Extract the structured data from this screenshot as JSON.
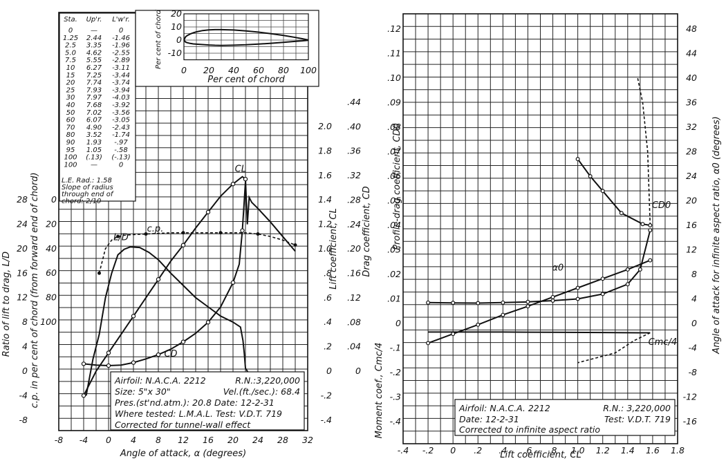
{
  "chart_data": [
    {
      "type": "line",
      "panel": "left",
      "xlabel": "Angle of attack, α (degrees)",
      "x_ticks": [
        "-8",
        "-4",
        "0",
        "4",
        "8",
        "12",
        "16",
        "20",
        "24",
        "28",
        "32"
      ],
      "xlim": [
        -8,
        32
      ],
      "axes": [
        {
          "label": "Ratio of lift to drag, L/D",
          "ticks": [
            "-8",
            "-4",
            "0",
            "4",
            "8",
            "12",
            "16",
            "20",
            "24",
            "28"
          ],
          "range": [
            -8,
            28
          ]
        },
        {
          "label": "c.p. in per cent of chord (from forward end of chord)",
          "ticks": [
            "100",
            "80",
            "60",
            "40",
            "20",
            "0"
          ],
          "range": [
            0,
            100
          ]
        },
        {
          "label": "Lift coefficient, CL",
          "ticks": [
            "-.4",
            "-.2",
            "0",
            ".2",
            ".4",
            ".6",
            ".8",
            "1.0",
            "1.2",
            "1.4",
            "1.6",
            "1.8",
            "2.0"
          ],
          "range": [
            -0.4,
            2.0
          ]
        },
        {
          "label": "Drag coefficient, CD",
          "ticks": [
            "0",
            ".04",
            ".08",
            ".12",
            ".16",
            ".20",
            ".24",
            ".28",
            ".32",
            ".36",
            ".40",
            ".44"
          ],
          "range": [
            0,
            0.44
          ]
        }
      ],
      "curve_labels": [
        "CL",
        "L/D",
        "c.p.",
        "CD"
      ],
      "series": [
        {
          "name": "CL",
          "x": [
            -4,
            -2,
            0,
            2,
            4,
            6,
            8,
            10,
            12,
            14,
            16,
            18,
            20,
            21.5,
            22
          ],
          "y": [
            -0.2,
            0.0,
            0.15,
            0.3,
            0.45,
            0.6,
            0.75,
            0.9,
            1.03,
            1.17,
            1.3,
            1.43,
            1.53,
            1.59,
            1.57
          ]
        },
        {
          "name": "CL-stalled",
          "x": [
            22,
            22.3,
            22.6,
            23,
            24,
            26,
            28,
            30
          ],
          "y": [
            1.57,
            1.2,
            1.42,
            1.38,
            1.33,
            1.22,
            1.1,
            0.98
          ]
        },
        {
          "name": "L/D",
          "x": [
            -3.6,
            -2.5,
            -1.5,
            -0.5,
            0.5,
            1.5,
            2.5,
            3.5,
            5,
            6.5,
            8,
            10,
            12,
            14,
            16,
            18,
            20,
            21.2,
            21.6,
            21.8,
            22,
            23,
            26,
            28,
            31
          ],
          "y": [
            -4,
            2,
            6,
            12,
            16,
            19,
            19.9,
            20.3,
            20.2,
            19.4,
            18.2,
            16,
            14,
            12,
            10.5,
            9,
            8,
            7.2,
            5,
            3,
            0.5,
            -1.2,
            -1.8,
            -2.3,
            -2.6
          ]
        },
        {
          "name": "c.p.",
          "x": [
            -1.5,
            -0.5,
            0.5,
            1.5,
            2.5,
            4,
            6,
            8,
            10,
            12,
            14,
            16,
            18,
            20,
            22,
            24,
            26,
            28,
            30
          ],
          "y": [
            60,
            40,
            33,
            30,
            29,
            28.5,
            28,
            27.5,
            27,
            27,
            27,
            27,
            27,
            27,
            27,
            28,
            30,
            33,
            37
          ]
        },
        {
          "name": "CD",
          "x": [
            -4,
            -2,
            0,
            2,
            4,
            6,
            8,
            10,
            12,
            14,
            16,
            18,
            20,
            21,
            21.5,
            22
          ],
          "y": [
            0.012,
            0.01,
            0.009,
            0.01,
            0.014,
            0.02,
            0.027,
            0.036,
            0.048,
            0.062,
            0.08,
            0.105,
            0.145,
            0.175,
            0.23,
            0.31
          ]
        }
      ],
      "inset": {
        "xlabel": "Per cent of chord",
        "ylabel": "Per cent of chord",
        "x_ticks": [
          "0",
          "20",
          "40",
          "60",
          "80",
          "100"
        ],
        "y_ticks": [
          "20",
          "10",
          "0",
          "-10"
        ],
        "upper": {
          "x": [
            0,
            1.25,
            2.5,
            5,
            7.5,
            10,
            15,
            20,
            25,
            30,
            40,
            50,
            60,
            70,
            80,
            90,
            95,
            100
          ],
          "y": [
            0,
            2.44,
            3.35,
            4.62,
            5.55,
            6.27,
            7.25,
            7.74,
            7.93,
            7.97,
            7.68,
            7.02,
            6.07,
            4.9,
            3.52,
            1.93,
            1.05,
            0.13
          ]
        },
        "lower": {
          "x": [
            0,
            1.25,
            2.5,
            5,
            7.5,
            10,
            15,
            20,
            25,
            30,
            40,
            50,
            60,
            70,
            80,
            90,
            95,
            100
          ],
          "y": [
            0,
            -1.46,
            -1.96,
            -2.55,
            -2.89,
            -3.11,
            -3.44,
            -3.74,
            -3.94,
            -4.03,
            -3.92,
            -3.56,
            -3.05,
            -2.43,
            -1.74,
            -0.97,
            -0.58,
            -0.13
          ]
        }
      },
      "table": {
        "headers": [
          "Sta.",
          "Up'r.",
          "L'w'r."
        ],
        "rows": [
          [
            "0",
            "—",
            "0"
          ],
          [
            "1.25",
            "2.44",
            "-1.46"
          ],
          [
            "2.5",
            "3.35",
            "-1.96"
          ],
          [
            "5.0",
            "4.62",
            "-2.55"
          ],
          [
            "7.5",
            "5.55",
            "-2.89"
          ],
          [
            "10",
            "6.27",
            "-3.11"
          ],
          [
            "15",
            "7.25",
            "-3.44"
          ],
          [
            "20",
            "7.74",
            "-3.74"
          ],
          [
            "25",
            "7.93",
            "-3.94"
          ],
          [
            "30",
            "7.97",
            "-4.03"
          ],
          [
            "40",
            "7.68",
            "-3.92"
          ],
          [
            "50",
            "7.02",
            "-3.56"
          ],
          [
            "60",
            "6.07",
            "-3.05"
          ],
          [
            "70",
            "4.90",
            "-2.43"
          ],
          [
            "80",
            "3.52",
            "-1.74"
          ],
          [
            "90",
            "1.93",
            "-.97"
          ],
          [
            "95",
            "1.05",
            "-.58"
          ],
          [
            "100",
            "(.13)",
            "(-.13)"
          ],
          [
            "100",
            "—",
            "0"
          ]
        ],
        "notes": [
          "L.E. Rad.: 1.58",
          "Slope of radius",
          "through end of",
          "chord: 2/10"
        ]
      },
      "legend": {
        "l1a": "Airfoil: N.A.C.A. 2212",
        "l1b": "R.N.:3,220,000",
        "l2a": "Size: 5\"x 30\"",
        "l2b": "Vel.(ft./sec.): 68.4",
        "l3": "Pres.(st'nd.atm.): 20.8  Date: 12-2-31",
        "l4": "Where tested: L.M.A.L.  Test: V.D.T. 719",
        "l5": "Corrected for tunnel-wall effect"
      }
    },
    {
      "type": "line",
      "panel": "right",
      "xlabel": "Lift coefficient, CL",
      "x_ticks": [
        "-.4",
        "-.2",
        "0",
        ".2",
        ".4",
        ".6",
        ".8",
        "1.0",
        "1.2",
        "1.4",
        "1.6",
        "1.8"
      ],
      "xlim": [
        -0.4,
        1.8
      ],
      "axes": [
        {
          "label": "Profile-drag coefficient, CD0",
          "ticks": [
            "0",
            ".01",
            ".02",
            ".03",
            ".04",
            ".05",
            ".06",
            ".07",
            ".08",
            ".09",
            ".10",
            ".11",
            ".12"
          ],
          "range": [
            0,
            0.12
          ]
        },
        {
          "label": "Moment coef., Cmc/4",
          "ticks": [
            "-.1",
            "-.2",
            "-.3",
            "-.4"
          ],
          "range": [
            -0.4,
            0
          ]
        },
        {
          "label": "Angle of attack for infinite aspect ratio, α0 (degrees)",
          "ticks": [
            "-16",
            "-12",
            "-8",
            "-4",
            "0",
            "4",
            "8",
            "12",
            "16",
            "20",
            "24",
            "28",
            "32",
            "36",
            "40",
            "44",
            "48"
          ],
          "range": [
            -16,
            48
          ]
        }
      ],
      "curve_labels": [
        "α0",
        "CD0",
        "Cmc/4"
      ],
      "series": [
        {
          "name": "CD0",
          "x": [
            -0.2,
            0,
            0.2,
            0.4,
            0.6,
            0.8,
            1.0,
            1.2,
            1.4,
            1.5,
            1.58
          ],
          "y": [
            0.0085,
            0.0084,
            0.0083,
            0.0085,
            0.0088,
            0.0093,
            0.01,
            0.012,
            0.016,
            0.022,
            0.038
          ]
        },
        {
          "name": "CD0-stalled",
          "x": [
            1.58,
            1.52,
            1.35,
            1.2,
            1.1,
            1.0
          ],
          "y": [
            0.04,
            0.0405,
            0.045,
            0.054,
            0.06,
            0.067
          ]
        },
        {
          "name": "α0",
          "x": [
            -0.2,
            0,
            0.2,
            0.4,
            0.6,
            0.8,
            1.0,
            1.2,
            1.4,
            1.58
          ],
          "y": [
            -3.2,
            -1.7,
            -0.2,
            1.4,
            2.8,
            4.3,
            5.8,
            7.3,
            8.8,
            10.3
          ]
        },
        {
          "name": "α0-stalled",
          "x": [
            1.58,
            1.56,
            1.52,
            1.48
          ],
          "y": [
            16,
            28,
            36,
            40
          ]
        },
        {
          "name": "Cmc/4",
          "x": [
            -0.2,
            0,
            0.4,
            0.8,
            1.2,
            1.5,
            1.58
          ],
          "y": [
            -0.035,
            -0.035,
            -0.035,
            -0.036,
            -0.037,
            -0.038,
            -0.038
          ]
        },
        {
          "name": "Cmc/4-stalled",
          "x": [
            1.58,
            1.45,
            1.3,
            1.0
          ],
          "y": [
            -0.038,
            -0.07,
            -0.12,
            -0.16
          ]
        }
      ],
      "legend": {
        "l1a": "Airfoil: N.A.C.A. 2212",
        "l1b": "R.N.: 3,220,000",
        "l2a": "Date: 12-2-31",
        "l2b": "Test: V.D.T. 719",
        "l3": "Corrected to infinite aspect ratio"
      }
    }
  ]
}
